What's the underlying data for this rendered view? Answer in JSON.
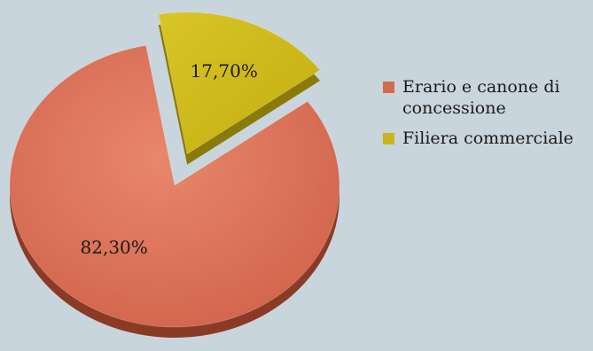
{
  "chart_data": {
    "type": "pie",
    "exploded": true,
    "style": "3d-tilted",
    "slices": [
      {
        "label": "Erario e canone di concessione",
        "value": 82.3,
        "display": "82,30%",
        "color": "#d46a4f"
      },
      {
        "label": "Filiera commerciale",
        "value": 17.7,
        "display": "17,70%",
        "color": "#c9b51a"
      }
    ],
    "legend": {
      "placement": "right",
      "entries": [
        "Erario e canone di concessione",
        "Filiera commerciale"
      ]
    }
  },
  "colors": {
    "background": "#c9d5dc",
    "slice_main": "#d46a4f",
    "slice_main_dark": "#8a3a25",
    "slice_explode": "#c9b51a",
    "slice_explode_dark": "#8a7a0a"
  }
}
